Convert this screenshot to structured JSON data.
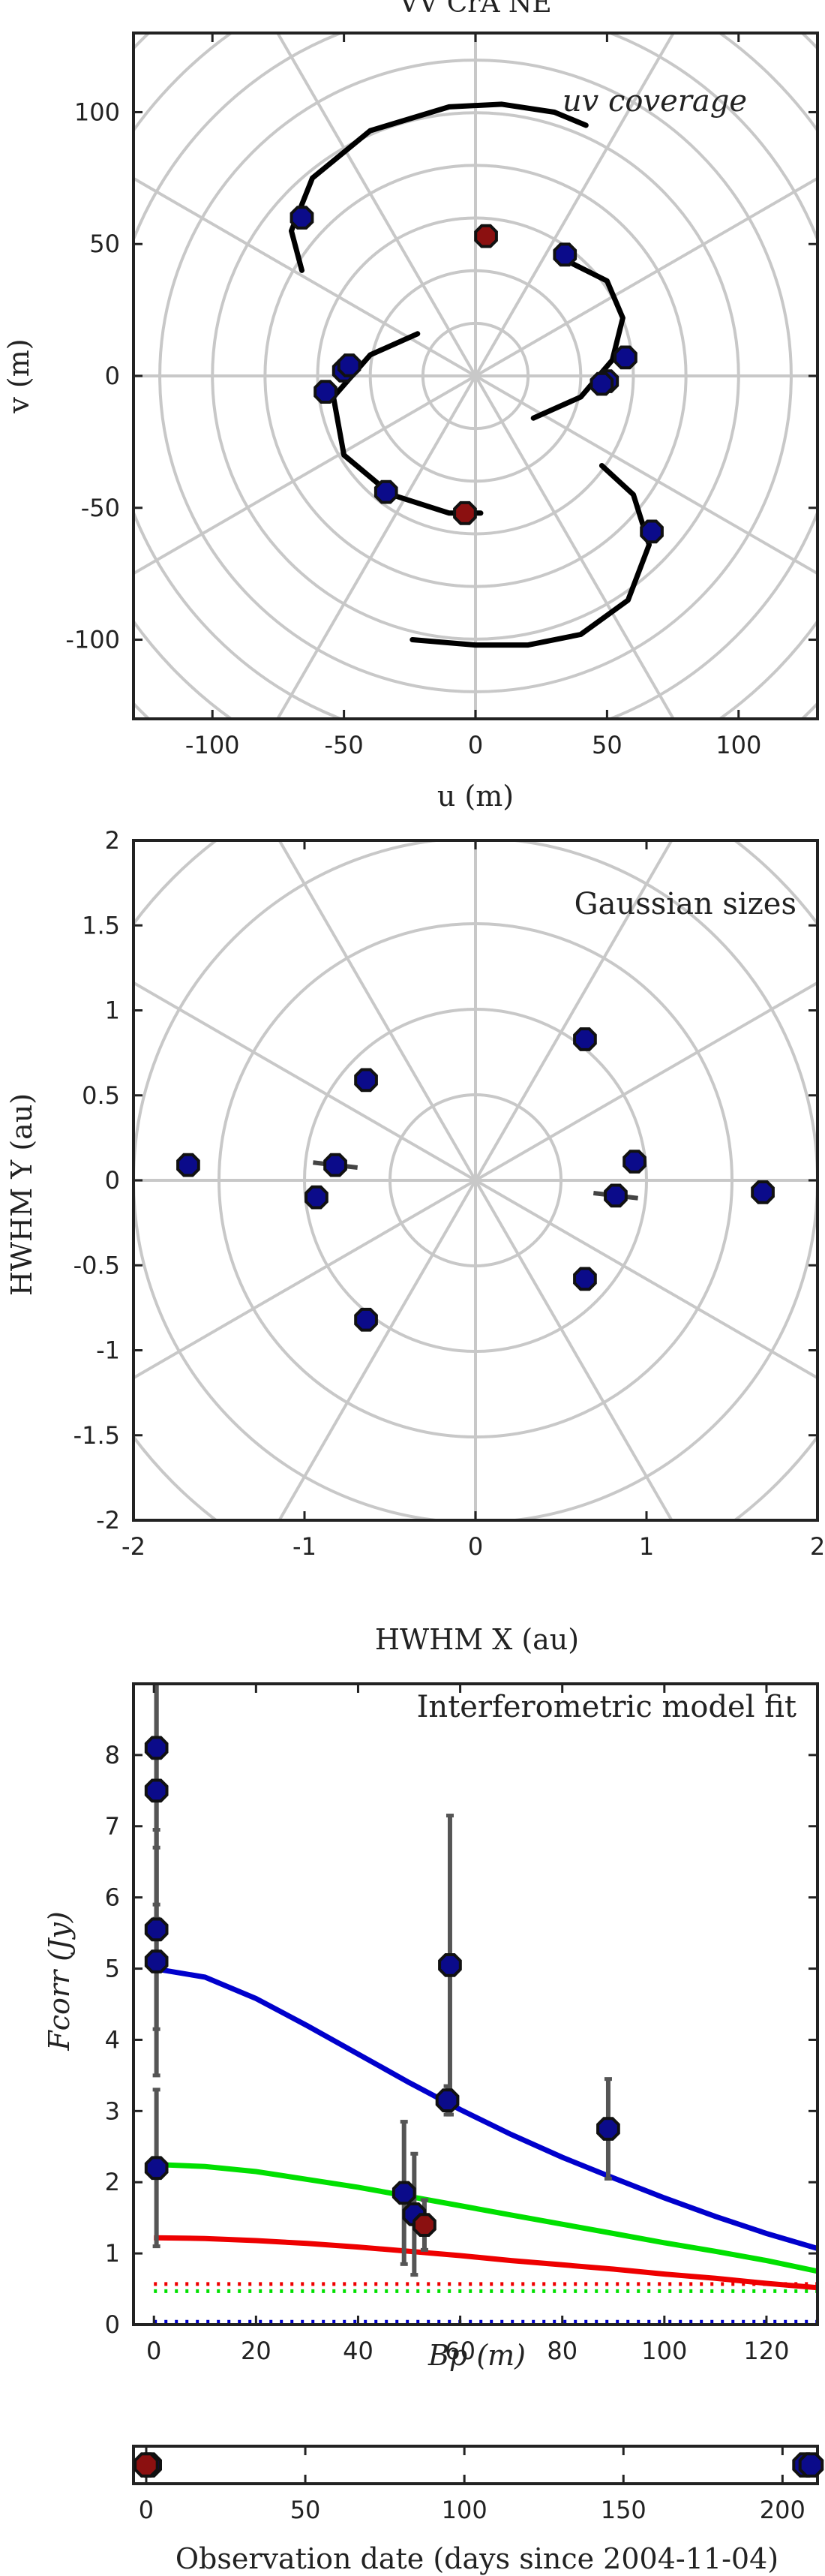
{
  "chart_data": [
    {
      "type": "scatter",
      "title": "VV CrA NE",
      "annotation": "uv coverage",
      "xlabel": "u (m)",
      "ylabel": "v (m)",
      "xlim": [
        -130,
        130
      ],
      "ylim": [
        -130,
        130
      ],
      "xticks": [
        -100,
        -50,
        0,
        50,
        100
      ],
      "yticks": [
        -100,
        -50,
        0,
        50,
        100
      ],
      "grid": "polar",
      "tracks": [
        [
          [
            -66,
            40
          ],
          [
            -70,
            55
          ],
          [
            -62,
            75
          ],
          [
            -40,
            93
          ],
          [
            -10,
            102
          ],
          [
            10,
            103
          ],
          [
            30,
            100
          ],
          [
            42,
            95
          ]
        ],
        [
          [
            34,
            44
          ],
          [
            50,
            36
          ],
          [
            56,
            22
          ],
          [
            52,
            6
          ],
          [
            40,
            -8
          ],
          [
            22,
            -16
          ]
        ],
        [
          [
            -22,
            16
          ],
          [
            -40,
            8
          ],
          [
            -54,
            -8
          ],
          [
            -50,
            -30
          ],
          [
            -32,
            -45
          ],
          [
            -10,
            -52
          ],
          [
            2,
            -52
          ]
        ],
        [
          [
            48,
            -34
          ],
          [
            60,
            -45
          ],
          [
            66,
            -64
          ],
          [
            58,
            -85
          ],
          [
            40,
            -98
          ],
          [
            20,
            -102
          ],
          [
            0,
            -102
          ],
          [
            -24,
            -100
          ]
        ]
      ],
      "series": [
        {
          "color": "#0b0b8a",
          "points": [
            [
              -66,
              60
            ],
            [
              34,
              46
            ],
            [
              57,
              7
            ],
            [
              50,
              -2
            ],
            [
              48,
              -3
            ],
            [
              -50,
              2
            ],
            [
              -48,
              4
            ],
            [
              -57,
              -6
            ],
            [
              -34,
              -44
            ],
            [
              67,
              -59
            ]
          ]
        },
        {
          "color": "#8b1010",
          "points": [
            [
              4,
              53
            ],
            [
              -4,
              -52
            ]
          ]
        }
      ]
    },
    {
      "type": "scatter",
      "annotation": "Gaussian sizes",
      "xlabel": "HWHM X (au)",
      "ylabel": "HWHM Y (au)",
      "xlim": [
        -2,
        2
      ],
      "ylim": [
        -2,
        2
      ],
      "xticks": [
        -2,
        -1,
        0,
        1,
        2
      ],
      "yticks": [
        -2,
        -1.5,
        -1,
        -0.5,
        0,
        0.5,
        1,
        1.5,
        2
      ],
      "grid": "polar",
      "series": [
        {
          "color": "#0b0b8a",
          "points": [
            [
              -1.68,
              0.09
            ],
            [
              -0.82,
              0.09
            ],
            [
              -0.93,
              -0.1
            ],
            [
              -0.64,
              0.59
            ],
            [
              -0.64,
              -0.82
            ],
            [
              0.64,
              0.83
            ],
            [
              0.93,
              0.11
            ],
            [
              0.82,
              -0.09
            ],
            [
              0.64,
              -0.58
            ],
            [
              1.68,
              -0.07
            ]
          ]
        }
      ]
    },
    {
      "type": "line",
      "annotation": "Interferometric model fit",
      "xlabel": "Bp (m)",
      "ylabel": "Fcorr (Jy)",
      "xlim": [
        -4,
        130
      ],
      "ylim": [
        0,
        9
      ],
      "xticks": [
        0,
        20,
        40,
        60,
        80,
        100,
        120
      ],
      "yticks": [
        0,
        1,
        2,
        3,
        4,
        5,
        6,
        7,
        8
      ],
      "models": [
        {
          "color": "#0000cc",
          "x": [
            0,
            10,
            20,
            30,
            40,
            50,
            60,
            70,
            80,
            90,
            100,
            110,
            120,
            130
          ],
          "y": [
            5.0,
            4.88,
            4.58,
            4.2,
            3.8,
            3.4,
            3.02,
            2.67,
            2.35,
            2.06,
            1.78,
            1.52,
            1.28,
            1.07
          ]
        },
        {
          "color": "#00e000",
          "x": [
            0,
            10,
            20,
            30,
            40,
            50,
            60,
            70,
            80,
            90,
            100,
            110,
            120,
            130
          ],
          "y": [
            2.25,
            2.22,
            2.15,
            2.04,
            1.93,
            1.8,
            1.67,
            1.54,
            1.41,
            1.28,
            1.15,
            1.03,
            0.9,
            0.75
          ]
        },
        {
          "color": "#ee0000",
          "x": [
            0,
            10,
            20,
            30,
            40,
            50,
            60,
            70,
            80,
            90,
            100,
            110,
            120,
            130
          ],
          "y": [
            1.22,
            1.21,
            1.18,
            1.14,
            1.09,
            1.03,
            0.97,
            0.9,
            0.84,
            0.78,
            0.71,
            0.65,
            0.58,
            0.52
          ]
        }
      ],
      "dotted_levels": [
        {
          "color": "#ee0000",
          "y": 0.57
        },
        {
          "color": "#00e000",
          "y": 0.47
        },
        {
          "color": "#0000cc",
          "y": 0.04
        }
      ],
      "series": [
        {
          "color": "#0b0b8a",
          "points": [
            {
              "x": 0.5,
              "y": 8.1,
              "err": 2.2
            },
            {
              "x": 0.5,
              "y": 7.5,
              "err": 1.8
            },
            {
              "x": 0.5,
              "y": 5.55,
              "err": 1.4
            },
            {
              "x": 0.5,
              "y": 5.1,
              "err": 1.6
            },
            {
              "x": 0.5,
              "y": 2.2,
              "err": 1.1
            },
            {
              "x": 49,
              "y": 1.85,
              "err": 1.0
            },
            {
              "x": 51,
              "y": 1.55,
              "err": 0.85
            },
            {
              "x": 57.5,
              "y": 3.15,
              "err": 0.2
            },
            {
              "x": 58,
              "y": 5.05,
              "err": 2.1
            },
            {
              "x": 89,
              "y": 2.75,
              "err": 0.7
            }
          ]
        },
        {
          "color": "#8b1010",
          "points": [
            {
              "x": 53,
              "y": 1.4,
              "err": 0.35
            }
          ]
        }
      ]
    },
    {
      "type": "scatter",
      "xlabel": "Observation date (days since 2004-11-04)",
      "xlim": [
        -4,
        211
      ],
      "xticks": [
        0,
        50,
        100,
        150,
        200
      ],
      "series": [
        {
          "color": "#0b0b8a",
          "points": [
            [
              1,
              0
            ],
            [
              207,
              0
            ],
            [
              209,
              0
            ]
          ]
        },
        {
          "color": "#8b1010",
          "points": [
            [
              0,
              0
            ]
          ]
        }
      ]
    }
  ]
}
